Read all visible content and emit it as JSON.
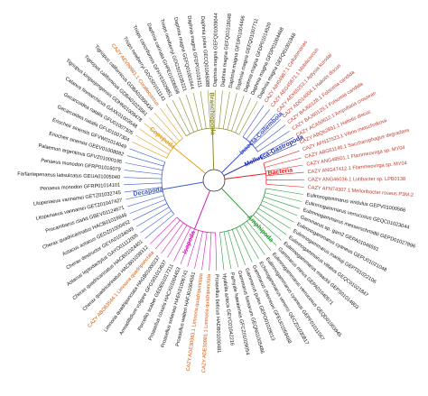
{
  "tree": {
    "clades": [
      {
        "name": "Branchiopoda",
        "color": "#8a8a2a",
        "label_color": "#111111",
        "leaves": [
          "Triops newberryi GDGS01011141",
          "Triops cancriformis GFHY01029851",
          "Daphnia carinata GHPE01006838",
          "Triops newberryi GDGS01035221",
          "Daphnia magna GEFQ01001944",
          "Daphnia magna GFDP01019111",
          "Daphnia pulex GECQ01049388",
          "Daphnia magna GEFQ01009044",
          "Daphnia magna GEFQ01018048",
          "Daphnia magna GFDP01004466",
          "Daphnia magna GEFQ01007711",
          "Daphnia magna GFDP01014520",
          "Daphnia magna GFDP01004468",
          "Daphnia magna GEFQ01001948"
        ]
      },
      {
        "name": "Insecta-Collembola",
        "color": "#3a4fc4",
        "label_color": "#c0392b",
        "leaves": [
          "CAZY AIH04987.1 Cellulomonas",
          "CAZY AEG45671.1 Mobilicoccus",
          "CAZY AEX85253.1 Aplysia kurodai",
          "CAZY ADD14004.1 Haliotis discus",
          "CAZY BAJ60128.1 Folsomia candida",
          "CAZY BAJ60129.1 Folsomia candida"
        ]
      },
      {
        "name": "Mollusca-Gastropoda",
        "color": "#1f2fb0",
        "label_color": "#c0392b",
        "leaves": [
          "CAZY ACA50612.1 Ampullaria crossean",
          "CAZY ABQ62851.1 Haliotis discus"
        ]
      },
      {
        "name": "Bacteria",
        "color": "#e02020",
        "label_color": "#c0392b",
        "leaves": [
          "CAZY AFN37523.1 Vibrio metschnikovii",
          "CAZY ABG61146.1 Saccharophagus degradans",
          "CAZY ANG48501.1 Flammeovirga sp. MY04",
          "CAZY ANG47412.1 Flammeovirga sp. MY04",
          "CAZY ANG46036.1 Lutibacter sp. LPB0138",
          "CAZY AFN74307.1 Melioribacter roseus P3M-2"
        ]
      },
      {
        "name": "Amphipoda",
        "color": "#2e9a3a",
        "label_color": "#111111",
        "leaves": [
          "Eulimnogammarus viridulus GEPV01000566",
          "Eulimnogammarus verrucosus GEQC01023044",
          "Eulimnogammarus messerschmidtii GEPD01027896",
          "Gammarus sp. gam2 GEPA01046591",
          "Eulimnogammarus cyaneus GEPU01021048",
          "Eulimnogammarus marituji GEPT01022106",
          "Eulimnogammarus vittatus GEQC01021847",
          "Eulimnogammarus maackii GEPS01014803",
          "Gammarus minus GEPA01040571",
          "Eulimnogammarus verrucosus GEQD01003945",
          "Eulimnogammarus cyaneus GEPF01011567",
          "Echinogammarus veneris GECZ01030817",
          "Gammarus chevreuxi GFEU01059488",
          "Gammarus pulex GEPO01028013",
          "Gammarus fossarum GEQN01005486",
          "Parhyale hawaiensis GFCZ01029054",
          "Hyalella azteca GEYC01042216"
        ]
      },
      {
        "name": "Isopoda",
        "color": "#d020b0",
        "label_color": "#111111",
        "leaves": [
          "Proasellus beticus HADB01030481",
          {
            "label": "CAZY ADE30981.1 Limnoria quadripunctata",
            "color": "#d35400"
          },
          {
            "label": "CAZY ADE30983.1 Limnoria quadripunctata",
            "color": "#d35400"
          },
          "Proasellus walteri HAFJ01004561",
          "Proasellus solanasi HAEK01006741",
          "Proasellus coxalis HACX01004453",
          "Porcellio scaber GEDE01017211",
          "Armadillidium vulgare GFGS01013637",
          "Limnoria quadripunctata HAGB01000237",
          {
            "label": "CAZY ABO63544.1 Limnoria quadripunctata",
            "color": "#d35400"
          },
          "Cherax quadricarinatus HACB01039312"
        ]
      },
      {
        "name": "Decapoda",
        "color": "#3a5fd0",
        "label_color": "#111111",
        "leaves": [
          "Cherax quadricarinatus HACB01024401",
          "Astacus leptodactylus GAYO01112005",
          "Cherax destructor GEYA01034049",
          "Astacus astacus GEDZ01000452",
          "Cherax quadricarinatus HACB01019848",
          "Procambarus clarkii GBEV01124671",
          "Litopenaeus vannamei GETZ01047427",
          "Litopenaeus vannamei GETZ01032745",
          "Penaeus monodon GFRP01014101",
          "Farfantepenaeus latisulcatus GEUA01005040",
          "Penaeus monodon GFRP01016079",
          "Palaemon argentinus GFVZ01000195",
          "Eriocheir sinensis GEEV01008082",
          "Eriocheir sinensis GFVW01014049"
        ]
      },
      {
        "name": "Copepoda",
        "color": "#e0a020",
        "label_color": "#111111",
        "leaves": [
          "Gecarcoidea natalis GFU01007304",
          "Gecarcoidea natalis GFU01007305",
          "Calanus finmarchicus GAXK01003548",
          "Tigriopus kingsejongensis GDHN01009478",
          "Tigriopus californicus GDBA01023561",
          "Tigriopus californicus GDBA01000434",
          {
            "label": "CAZY AEV89981.1 Corallococcus",
            "color": "#d35400"
          }
        ]
      }
    ]
  }
}
